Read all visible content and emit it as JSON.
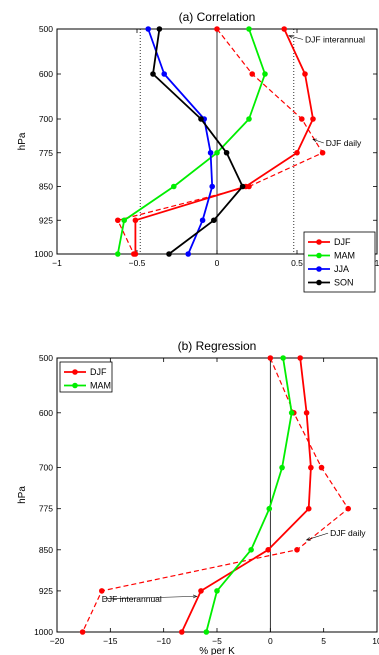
{
  "chart_data": [
    {
      "type": "line",
      "title": "(a) Correlation",
      "xlabel": "",
      "ylabel": "hPa",
      "xlim": [
        -1,
        1
      ],
      "xticks": [
        -1,
        -0.5,
        0,
        0.5,
        1
      ],
      "xtick_labels": [
        "−1",
        "−0.5",
        "0",
        "0.5",
        "1"
      ],
      "yticks": [
        500,
        600,
        700,
        775,
        850,
        925,
        1000
      ],
      "ytick_labels": [
        "500",
        "600",
        "700",
        "775",
        "850",
        "925",
        "1000"
      ],
      "legend_position": "bottom-right",
      "reference_lines": [
        -0.48,
        0.48
      ],
      "series": [
        {
          "name": "DJF",
          "color": "#ff0000",
          "style": "solid",
          "legend": true,
          "x": [
            0.42,
            0.55,
            0.6,
            0.5,
            0.18,
            -0.51,
            -0.51
          ],
          "y": [
            500,
            600,
            700,
            775,
            850,
            925,
            1000
          ]
        },
        {
          "name": "MAM",
          "color": "#00ee00",
          "style": "solid",
          "legend": true,
          "x": [
            0.2,
            0.3,
            0.2,
            0.0,
            -0.27,
            -0.58,
            -0.62
          ],
          "y": [
            500,
            600,
            700,
            775,
            850,
            925,
            1000
          ]
        },
        {
          "name": "JJA",
          "color": "#0000ff",
          "style": "solid",
          "legend": true,
          "x": [
            -0.43,
            -0.33,
            -0.08,
            -0.04,
            -0.03,
            -0.09,
            -0.18
          ],
          "y": [
            500,
            600,
            700,
            775,
            850,
            925,
            1000
          ]
        },
        {
          "name": "SON",
          "color": "#000000",
          "style": "solid",
          "legend": true,
          "x": [
            -0.36,
            -0.4,
            -0.1,
            0.06,
            0.16,
            -0.02,
            -0.3
          ],
          "y": [
            500,
            600,
            700,
            775,
            850,
            925,
            1000
          ]
        },
        {
          "name": "",
          "color": "#ff0000",
          "style": "dashed",
          "legend": false,
          "x": [
            0.0,
            0.22,
            0.53,
            0.66,
            0.2,
            -0.62,
            -0.52
          ],
          "y": [
            500,
            600,
            700,
            775,
            850,
            925,
            1000
          ]
        }
      ],
      "annotations": [
        {
          "text": "DJF interannual",
          "x": 0.55,
          "y": 530,
          "ax": 0.45,
          "ay": 515
        },
        {
          "text": "DJF daily",
          "x": 0.68,
          "y": 760,
          "ax": 0.6,
          "ay": 745
        }
      ]
    },
    {
      "type": "line",
      "title": "(b) Regression",
      "xlabel": "% per K",
      "ylabel": "hPa",
      "xlim": [
        -20,
        10
      ],
      "xticks": [
        -20,
        -15,
        -10,
        -5,
        0,
        5,
        10
      ],
      "xtick_labels": [
        "−20",
        "−15",
        "−10",
        "−5",
        "0",
        "5",
        "10"
      ],
      "yticks": [
        500,
        600,
        700,
        775,
        850,
        925,
        1000
      ],
      "ytick_labels": [
        "500",
        "600",
        "700",
        "775",
        "850",
        "925",
        "1000"
      ],
      "legend_position": "top-left",
      "series": [
        {
          "name": "DJF",
          "color": "#ff0000",
          "style": "solid",
          "legend": true,
          "x": [
            2.8,
            3.4,
            3.8,
            3.6,
            -0.2,
            -6.5,
            -8.3
          ],
          "y": [
            500,
            600,
            700,
            775,
            850,
            925,
            1000
          ]
        },
        {
          "name": "MAM",
          "color": "#00ee00",
          "style": "solid",
          "legend": true,
          "x": [
            1.2,
            2.0,
            1.1,
            -0.1,
            -1.8,
            -5.0,
            -6.0
          ],
          "y": [
            500,
            600,
            700,
            775,
            850,
            925,
            1000
          ]
        },
        {
          "name": "",
          "color": "#ff0000",
          "style": "dashed",
          "legend": false,
          "x": [
            0.0,
            2.2,
            4.8,
            7.3,
            2.5,
            -15.8,
            -17.6
          ],
          "y": [
            500,
            600,
            700,
            775,
            850,
            925,
            1000
          ]
        }
      ],
      "annotations": [
        {
          "text": "DJF daily",
          "x": 5.6,
          "y": 825,
          "ax": 3.4,
          "ay": 832
        },
        {
          "text": "DJF interannual",
          "x": -15.8,
          "y": 945,
          "ax": -6.9,
          "ay": 935
        }
      ]
    }
  ]
}
